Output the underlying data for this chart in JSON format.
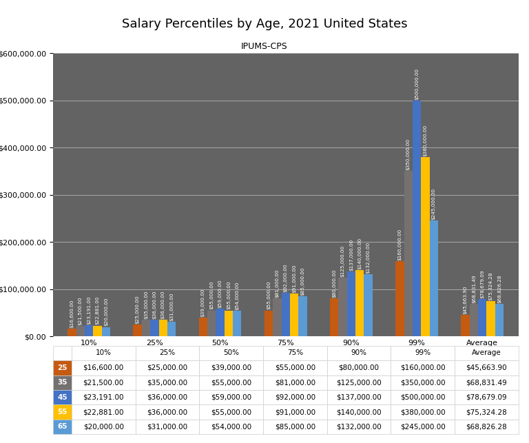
{
  "title": "Salary Percentiles by Age, 2021 United States",
  "subtitle": "IPUMS-CPS",
  "categories": [
    "10%",
    "25%",
    "50%",
    "75%",
    "90%",
    "99%",
    "Average"
  ],
  "ages": [
    "25",
    "35",
    "45",
    "55",
    "65"
  ],
  "colors": [
    "#C55A11",
    "#767171",
    "#4472C4",
    "#FFC000",
    "#5B9BD5"
  ],
  "data": {
    "25": [
      16600,
      25000,
      39000,
      55000,
      80000,
      160000,
      45663.9
    ],
    "35": [
      21500,
      35000,
      55000,
      81000,
      125000,
      350000,
      68831.49
    ],
    "45": [
      23191,
      36000,
      59000,
      92000,
      137000,
      500000,
      78679.09
    ],
    "55": [
      22881,
      36000,
      55000,
      91000,
      140000,
      380000,
      75324.28
    ],
    "65": [
      20000,
      31000,
      54000,
      85000,
      132000,
      245000,
      68826.28
    ]
  },
  "ylim": [
    0,
    600000
  ],
  "yticks": [
    0,
    100000,
    200000,
    300000,
    400000,
    500000,
    600000
  ],
  "plot_bg_color": "#636363",
  "fig_bg_color": "#FFFFFF",
  "bar_value_fontsize": 5.2,
  "bar_value_color": "#FFFFFF",
  "title_fontsize": 13,
  "subtitle_fontsize": 9,
  "tick_label_fontsize": 8,
  "table_fontsize": 7.5,
  "grid_color": "#FFFFFF",
  "grid_alpha": 0.45,
  "grid_linewidth": 0.7,
  "bar_width": 0.13
}
